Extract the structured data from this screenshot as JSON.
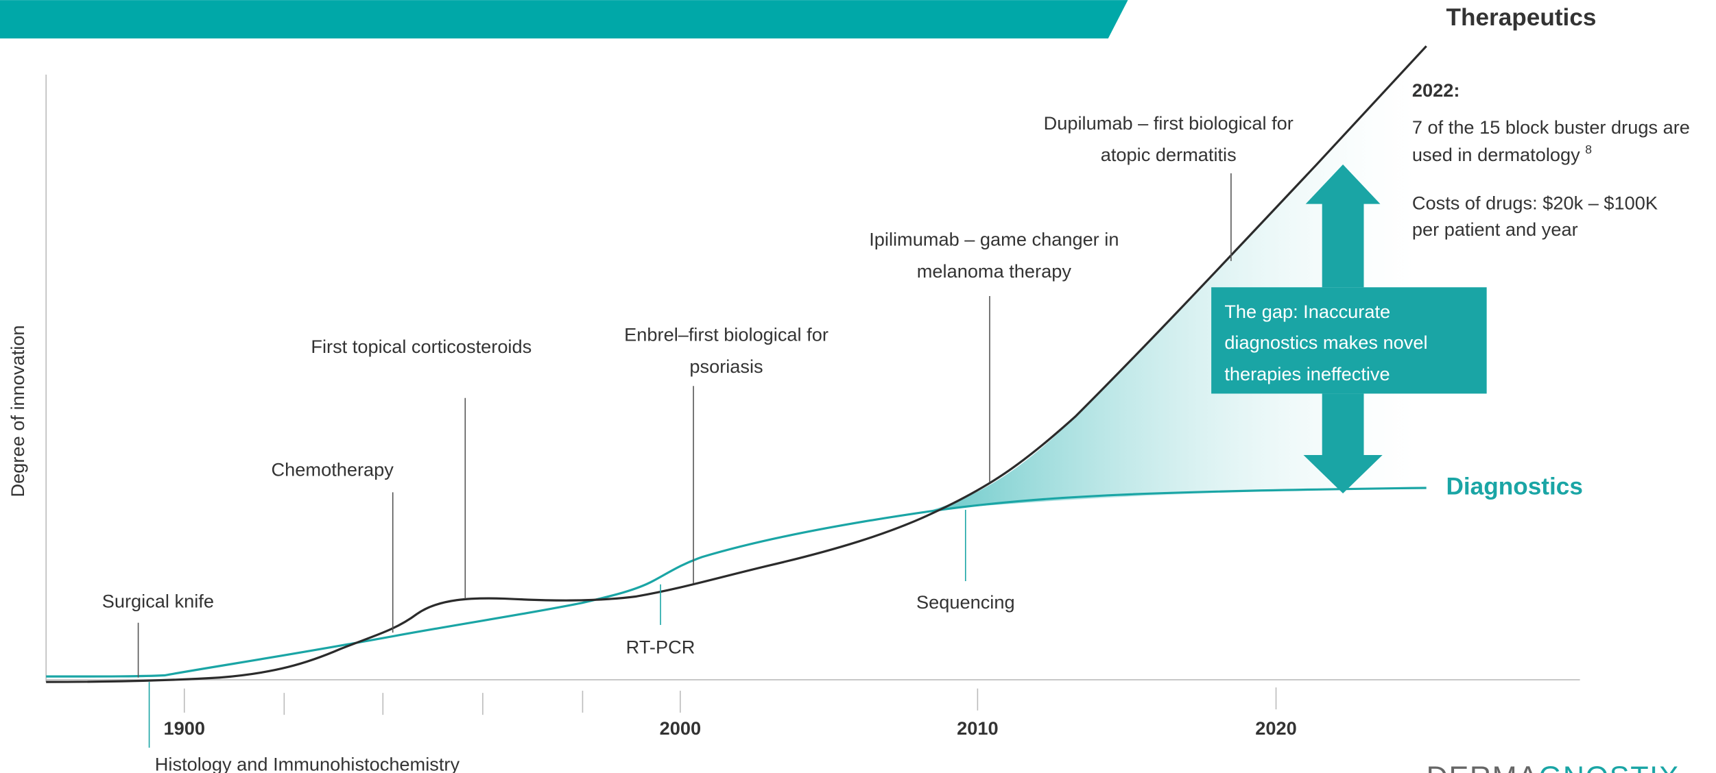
{
  "title_right": "Therapeutics",
  "diagnostics_label": "Diagnostics",
  "y_axis_label": "Degree of innovation",
  "x_ticks": [
    "1900",
    "2000",
    "2010",
    "2020"
  ],
  "therapy_events": [
    {
      "lines": [
        "Surgical knife"
      ]
    },
    {
      "lines": [
        "Chemotherapy"
      ]
    },
    {
      "lines": [
        "First topical corticosteroids"
      ]
    },
    {
      "lines": [
        "Enbrel–first biological for",
        "psoriasis"
      ]
    },
    {
      "lines": [
        "Ipilimumab – game changer in",
        "melanoma therapy"
      ]
    },
    {
      "lines": [
        "Dupilumab – first biological for",
        "atopic dermatitis"
      ]
    }
  ],
  "diagnostic_events": [
    "RT-PCR",
    "Sequencing",
    "Histology and Immunohistochemistry"
  ],
  "note": {
    "year": "2022:",
    "line1": "7 of the 15 block buster drugs are",
    "line2": "used in dermatology",
    "footnote": "8",
    "line3": "Costs of drugs: $20k – $100K",
    "line4": "per patient and year"
  },
  "gap_box": [
    "The gap: Inaccurate",
    "diagnostics makes novel",
    "therapies ineffective"
  ],
  "logo": {
    "part1": "DERMA",
    "part2": "GNOSTIX"
  }
}
